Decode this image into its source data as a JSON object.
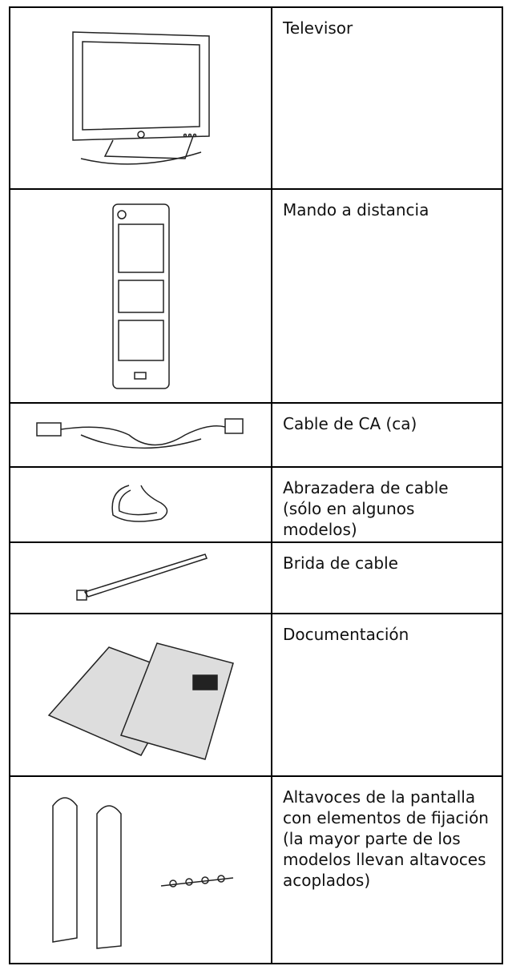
{
  "table": {
    "rows": [
      [
        "Televisor"
      ],
      [
        "Mando a distancia"
      ],
      [
        "Cable de CA (ca)"
      ],
      [
        "Abrazadera de cable (sólo en algunos modelos)"
      ],
      [
        "Brida de cable"
      ],
      [
        "Documentación"
      ],
      [
        "Altavoces de la pantalla con elementos de fijación (la mayor parte de los modelos llevan altavoces acoplados)"
      ]
    ]
  }
}
